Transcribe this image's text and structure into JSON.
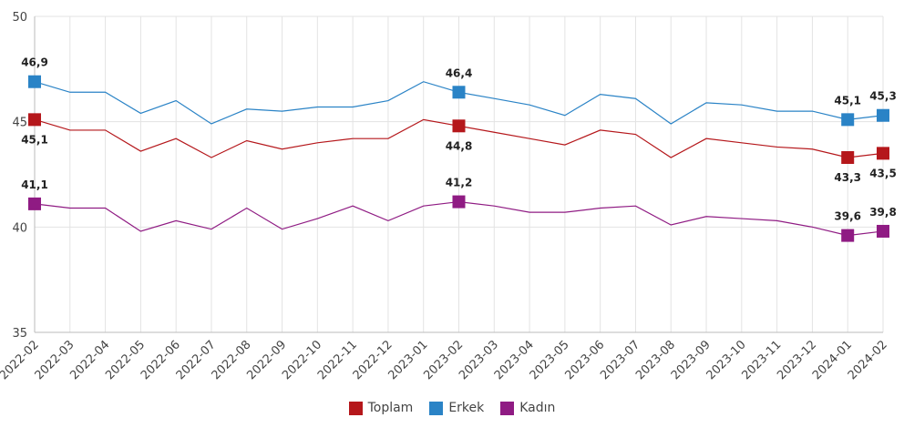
{
  "chart_data": {
    "type": "line",
    "title": "",
    "xlabel": "",
    "ylabel": "",
    "ylim": [
      35,
      50
    ],
    "yticks": [
      "35",
      "40",
      "45",
      "50"
    ],
    "grid": true,
    "legend_position": "bottom",
    "x": [
      "2022-02",
      "2022-03",
      "2022-04",
      "2022-05",
      "2022-06",
      "2022-07",
      "2022-08",
      "2022-09",
      "2022-10",
      "2022-11",
      "2022-12",
      "2023-01",
      "2023-02",
      "2023-03",
      "2023-04",
      "2023-05",
      "2023-06",
      "2023-07",
      "2023-08",
      "2023-09",
      "2023-10",
      "2023-11",
      "2023-12",
      "2024-01",
      "2024-02"
    ],
    "highlighted_indices": [
      0,
      12,
      23,
      24
    ],
    "series": [
      {
        "name": "Toplam",
        "color": "#b5171b",
        "label_pos": "below",
        "values": [
          45.1,
          44.6,
          44.6,
          43.6,
          44.2,
          43.3,
          44.1,
          43.7,
          44.0,
          44.2,
          44.2,
          45.1,
          44.8,
          44.5,
          44.2,
          43.9,
          44.6,
          44.4,
          43.3,
          44.2,
          44.0,
          43.8,
          43.7,
          43.3,
          43.5
        ]
      },
      {
        "name": "Erkek",
        "color": "#2a83c6",
        "label_pos": "above",
        "values": [
          46.9,
          46.4,
          46.4,
          45.4,
          46.0,
          44.9,
          45.6,
          45.5,
          45.7,
          45.7,
          46.0,
          46.9,
          46.4,
          46.1,
          45.8,
          45.3,
          46.3,
          46.1,
          44.9,
          45.9,
          45.8,
          45.5,
          45.5,
          45.1,
          45.3
        ]
      },
      {
        "name": "Kadın",
        "color": "#8f1b83",
        "label_pos": "above",
        "values": [
          41.1,
          40.9,
          40.9,
          39.8,
          40.3,
          39.9,
          40.9,
          39.9,
          40.4,
          41.0,
          40.3,
          41.0,
          41.2,
          41.0,
          40.7,
          40.7,
          40.9,
          41.0,
          40.1,
          40.5,
          40.4,
          40.3,
          40.0,
          39.6,
          39.8
        ]
      }
    ]
  }
}
